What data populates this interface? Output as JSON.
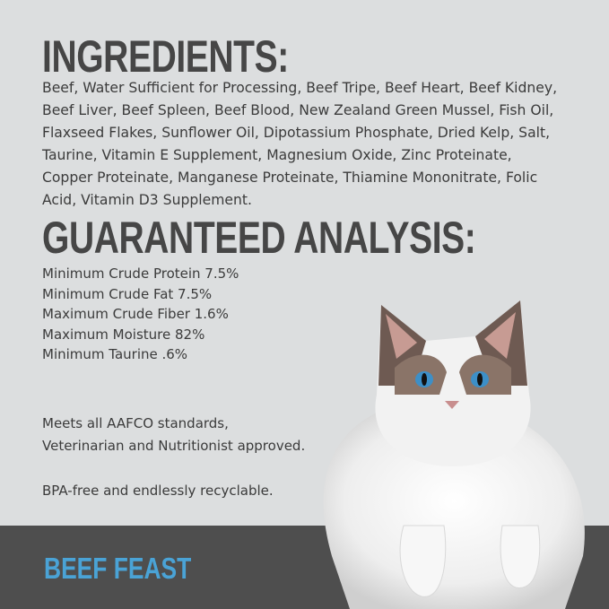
{
  "ingredients": {
    "heading": "INGREDIENTS:",
    "lines": [
      "Beef, Water Sufficient for Processing, Beef Tripe, Beef Heart, Beef Kidney,",
      "Beef Liver, Beef Spleen, Beef Blood, New Zealand Green Mussel, Fish Oil,",
      "Flaxseed Flakes, Sunflower Oil, Dipotassium Phosphate, Dried Kelp, Salt,",
      "Taurine, Vitamin E Supplement, Magnesium Oxide, Zinc Proteinate,",
      "Copper Proteinate, Manganese Proteinate, Thiamine Mononitrate, Folic",
      "Acid, Vitamin D3 Supplement."
    ]
  },
  "analysis": {
    "heading": "GUARANTEED ANALYSIS:",
    "items": [
      "Minimum Crude Protein 7.5%",
      "Minimum Crude Fat 7.5%",
      "Maximum Crude Fiber 1.6%",
      "Maximum Moisture 82%",
      "Minimum Taurine .6%"
    ]
  },
  "notes": {
    "standards": [
      "Meets all AAFCO standards,",
      "Veterinarian and Nutritionist approved."
    ],
    "packaging": "BPA-free and endlessly recyclable."
  },
  "brand": {
    "label": "BEEF FEAST",
    "color": "#4aa3d6"
  },
  "colors": {
    "background": "#dcdedf",
    "band": "#4e4e4e",
    "text": "#3b3b3b"
  }
}
